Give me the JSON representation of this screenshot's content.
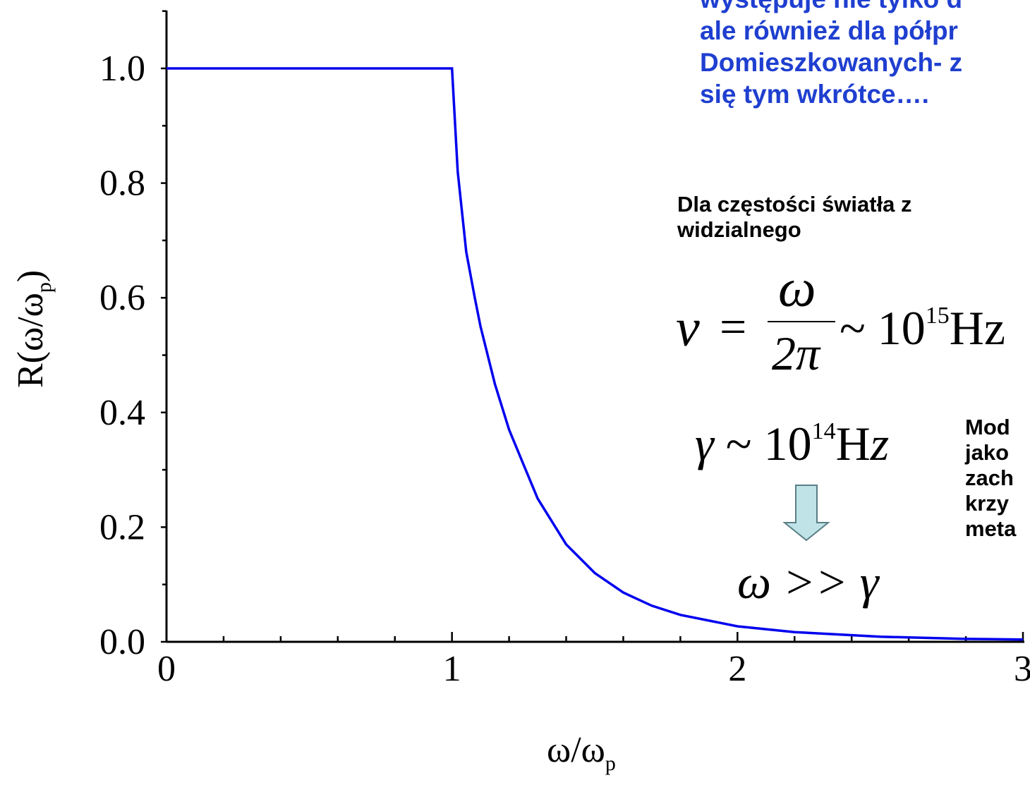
{
  "chart_data": {
    "type": "line",
    "xlabel": "ω/ω",
    "xlabel_sub": "p",
    "ylabel": "R(ω/ω",
    "ylabel_sub": "p",
    "ylabel_close": ")",
    "xlim": [
      0,
      3
    ],
    "ylim": [
      0,
      1.1
    ],
    "x_ticks": [
      "0",
      "1",
      "2",
      "3"
    ],
    "y_ticks": [
      "0.0",
      "0.2",
      "0.4",
      "0.6",
      "0.8",
      "1.0"
    ],
    "series": [
      {
        "color": "#0000ee",
        "x": [
          0,
          1.0,
          1.02,
          1.05,
          1.08,
          1.1,
          1.15,
          1.2,
          1.25,
          1.3,
          1.4,
          1.5,
          1.6,
          1.7,
          1.8,
          2.0,
          2.2,
          2.5,
          2.8,
          3.0
        ],
        "y": [
          1.0,
          1.0,
          0.82,
          0.68,
          0.6,
          0.55,
          0.45,
          0.37,
          0.31,
          0.25,
          0.17,
          0.12,
          0.086,
          0.063,
          0.047,
          0.027,
          0.017,
          0.009,
          0.005,
          0.004
        ]
      }
    ]
  },
  "notes": {
    "blue_lines": [
      "występuje nie tylko d",
      "ale również dla półpr",
      "Domieszkowanych- z",
      "się tym wkrótce…."
    ],
    "freq_lines": [
      "Dla częstości światła z",
      "widzialnego"
    ],
    "model_lines": [
      "Mod",
      "jako",
      "zach",
      "krzy",
      "meta"
    ]
  },
  "formulas": {
    "nu_symbol": "ν",
    "equals": "=",
    "omega": "ω",
    "two_pi": "2π",
    "nu_approx": "~ 10",
    "nu_exp": "15",
    "nu_unit": "Hz",
    "gamma_lhs": "γ ~ 10",
    "gamma_exp": "14",
    "gamma_unit": "Hz",
    "inequality": "ω >> γ"
  },
  "colors": {
    "curve": "#0000ee",
    "note_blue": "#1f3fd0",
    "arrow_fill": "#bfe3e6",
    "arrow_stroke": "#5a7f86"
  }
}
